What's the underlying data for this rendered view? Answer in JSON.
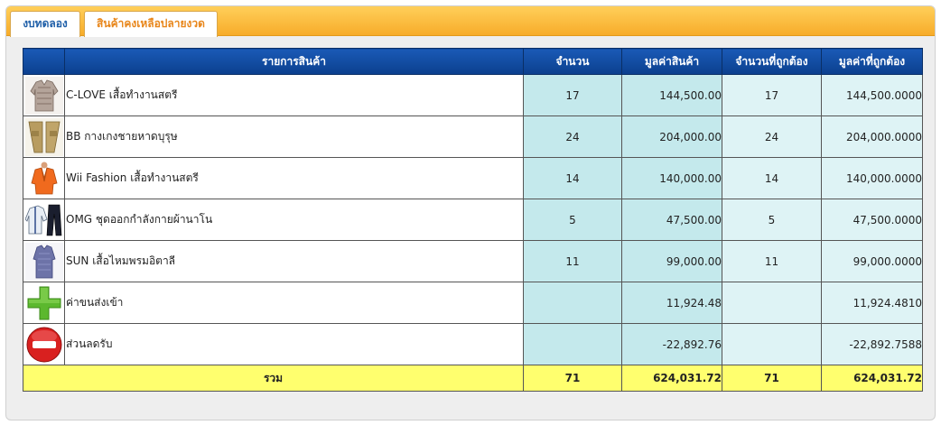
{
  "tabs": [
    {
      "label": "งบทดลอง",
      "active": false
    },
    {
      "label": "สินค้าคงเหลือปลายงวด",
      "active": true
    }
  ],
  "table": {
    "headers": {
      "item": "รายการสินค้า",
      "qty": "จำนวน",
      "value": "มูลค่าสินค้า",
      "correct_qty": "จำนวนที่ถูกต้อง",
      "correct_value": "มูลค่าที่ถูกต้อง"
    },
    "rows": [
      {
        "icon": "blouse-product-image",
        "name": "C-LOVE เสื้อทำงานสตรี",
        "qty": "17",
        "value": "144,500.00",
        "correct_qty": "17",
        "correct_value": "144,500.0000"
      },
      {
        "icon": "pants-product-image",
        "name": "BB กางเกงชายหาดบุรุษ",
        "qty": "24",
        "value": "204,000.00",
        "correct_qty": "24",
        "correct_value": "204,000.0000"
      },
      {
        "icon": "jacket-product-image",
        "name": "Wii Fashion เสื้อทำงานสตรี",
        "qty": "14",
        "value": "140,000.00",
        "correct_qty": "14",
        "correct_value": "140,000.0000"
      },
      {
        "icon": "sportswear-product-image",
        "name": "OMG ชุดออกกำลังกายผ้านาโน",
        "qty": "5",
        "value": "47,500.00",
        "correct_qty": "5",
        "correct_value": "47,500.0000"
      },
      {
        "icon": "silk-shirt-product-image",
        "name": "SUN เสื้อไหมพรมอิตาลี",
        "qty": "11",
        "value": "99,000.00",
        "correct_qty": "11",
        "correct_value": "99,000.0000"
      },
      {
        "icon": "plus-icon",
        "name": "ค่าขนส่งเข้า",
        "qty": "",
        "value": "11,924.48",
        "correct_qty": "",
        "correct_value": "11,924.4810"
      },
      {
        "icon": "minus-icon",
        "name": "ส่วนลดรับ",
        "qty": "",
        "value": "-22,892.76",
        "correct_qty": "",
        "correct_value": "-22,892.7588"
      }
    ],
    "total": {
      "label": "รวม",
      "qty": "71",
      "value": "624,031.72",
      "correct_qty": "71",
      "correct_value": "624,031.72"
    }
  },
  "colors": {
    "tab_bar": "#f7ac2a",
    "header_bg": "#0b3f8e",
    "qty_bg": "#c4e9ec",
    "correct_bg": "#def3f5",
    "total_bg": "#ffff6e",
    "plus": "#5cb82e",
    "minus": "#d9201f"
  }
}
